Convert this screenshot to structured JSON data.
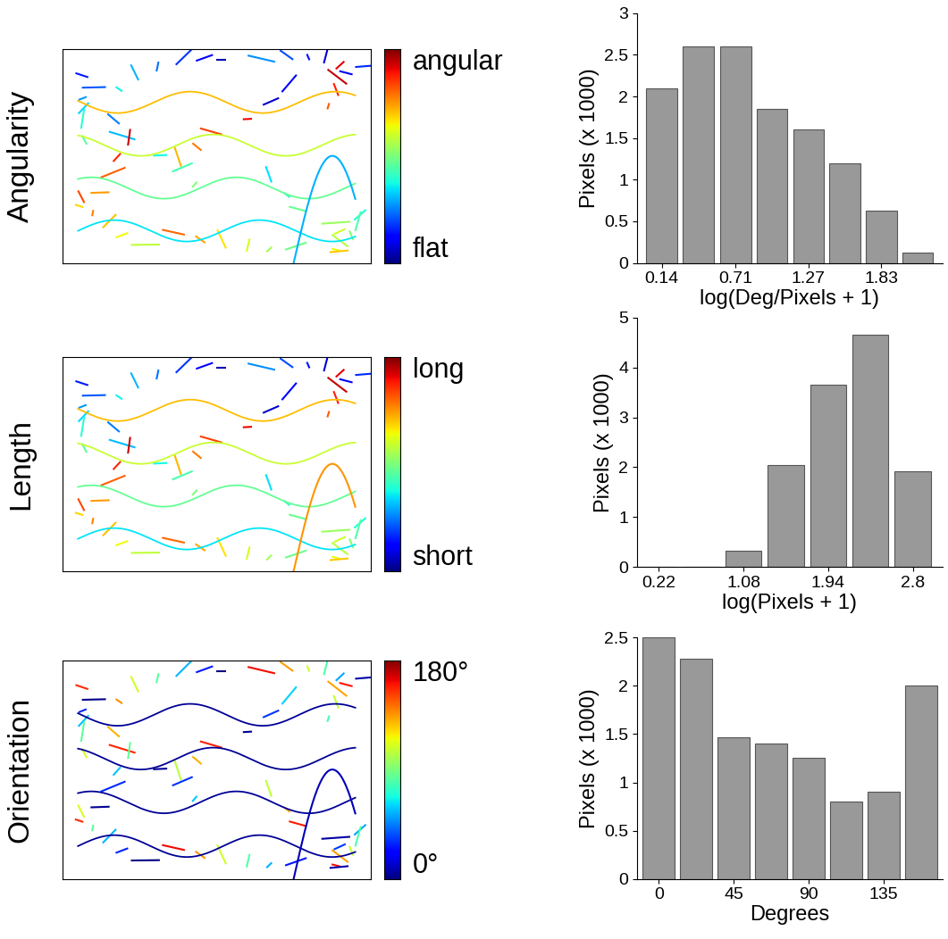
{
  "chart_data": [
    {
      "type": "bar",
      "row_label": "Angularity",
      "colorbar_labels": {
        "high": "angular",
        "low": "flat"
      },
      "x": [
        0.14,
        0.42,
        0.71,
        0.99,
        1.27,
        1.55,
        1.83,
        2.11
      ],
      "values": [
        2.1,
        2.6,
        2.6,
        1.85,
        1.6,
        1.2,
        0.63,
        0.12
      ],
      "x_label": "log(Deg/Pixels + 1)",
      "y_label": "Pixels (x 1000)",
      "xlim": [
        -0.05,
        2.3
      ],
      "ylim": [
        0,
        3
      ],
      "xticks": [
        0.14,
        0.71,
        1.27,
        1.83
      ],
      "yticks": [
        0,
        0.5,
        1,
        1.5,
        2,
        2.5,
        3
      ],
      "color": "#999999"
    },
    {
      "type": "bar",
      "row_label": "Length",
      "colorbar_labels": {
        "high": "long",
        "low": "short"
      },
      "x": [
        0.22,
        0.65,
        1.08,
        1.51,
        1.94,
        2.37,
        2.8
      ],
      "values": [
        0,
        0,
        0.33,
        2.05,
        3.65,
        4.65,
        1.92
      ],
      "x_label": "log(Pixels + 1)",
      "y_label": "Pixels (x 1000)",
      "xlim": [
        0,
        3.1
      ],
      "ylim": [
        0,
        5
      ],
      "xticks": [
        0.22,
        1.08,
        1.94,
        2.8
      ],
      "yticks": [
        0,
        1,
        2,
        3,
        4,
        5
      ],
      "color": "#999999"
    },
    {
      "type": "bar",
      "row_label": "Orientation",
      "colorbar_labels": {
        "high": "180°",
        "low": "0°"
      },
      "x": [
        0,
        22.5,
        45,
        67.5,
        90,
        112.5,
        135,
        157.5
      ],
      "values": [
        2.5,
        2.28,
        1.47,
        1.4,
        1.25,
        0.8,
        0.9,
        2.0
      ],
      "x_label": "Degrees",
      "y_label": "Pixels (x 1000)",
      "xlim": [
        -13,
        170
      ],
      "ylim": [
        0,
        2.5
      ],
      "xticks": [
        0,
        45,
        90,
        135
      ],
      "yticks": [
        0,
        0.5,
        1,
        1.5,
        2,
        2.5
      ],
      "color": "#999999"
    }
  ]
}
